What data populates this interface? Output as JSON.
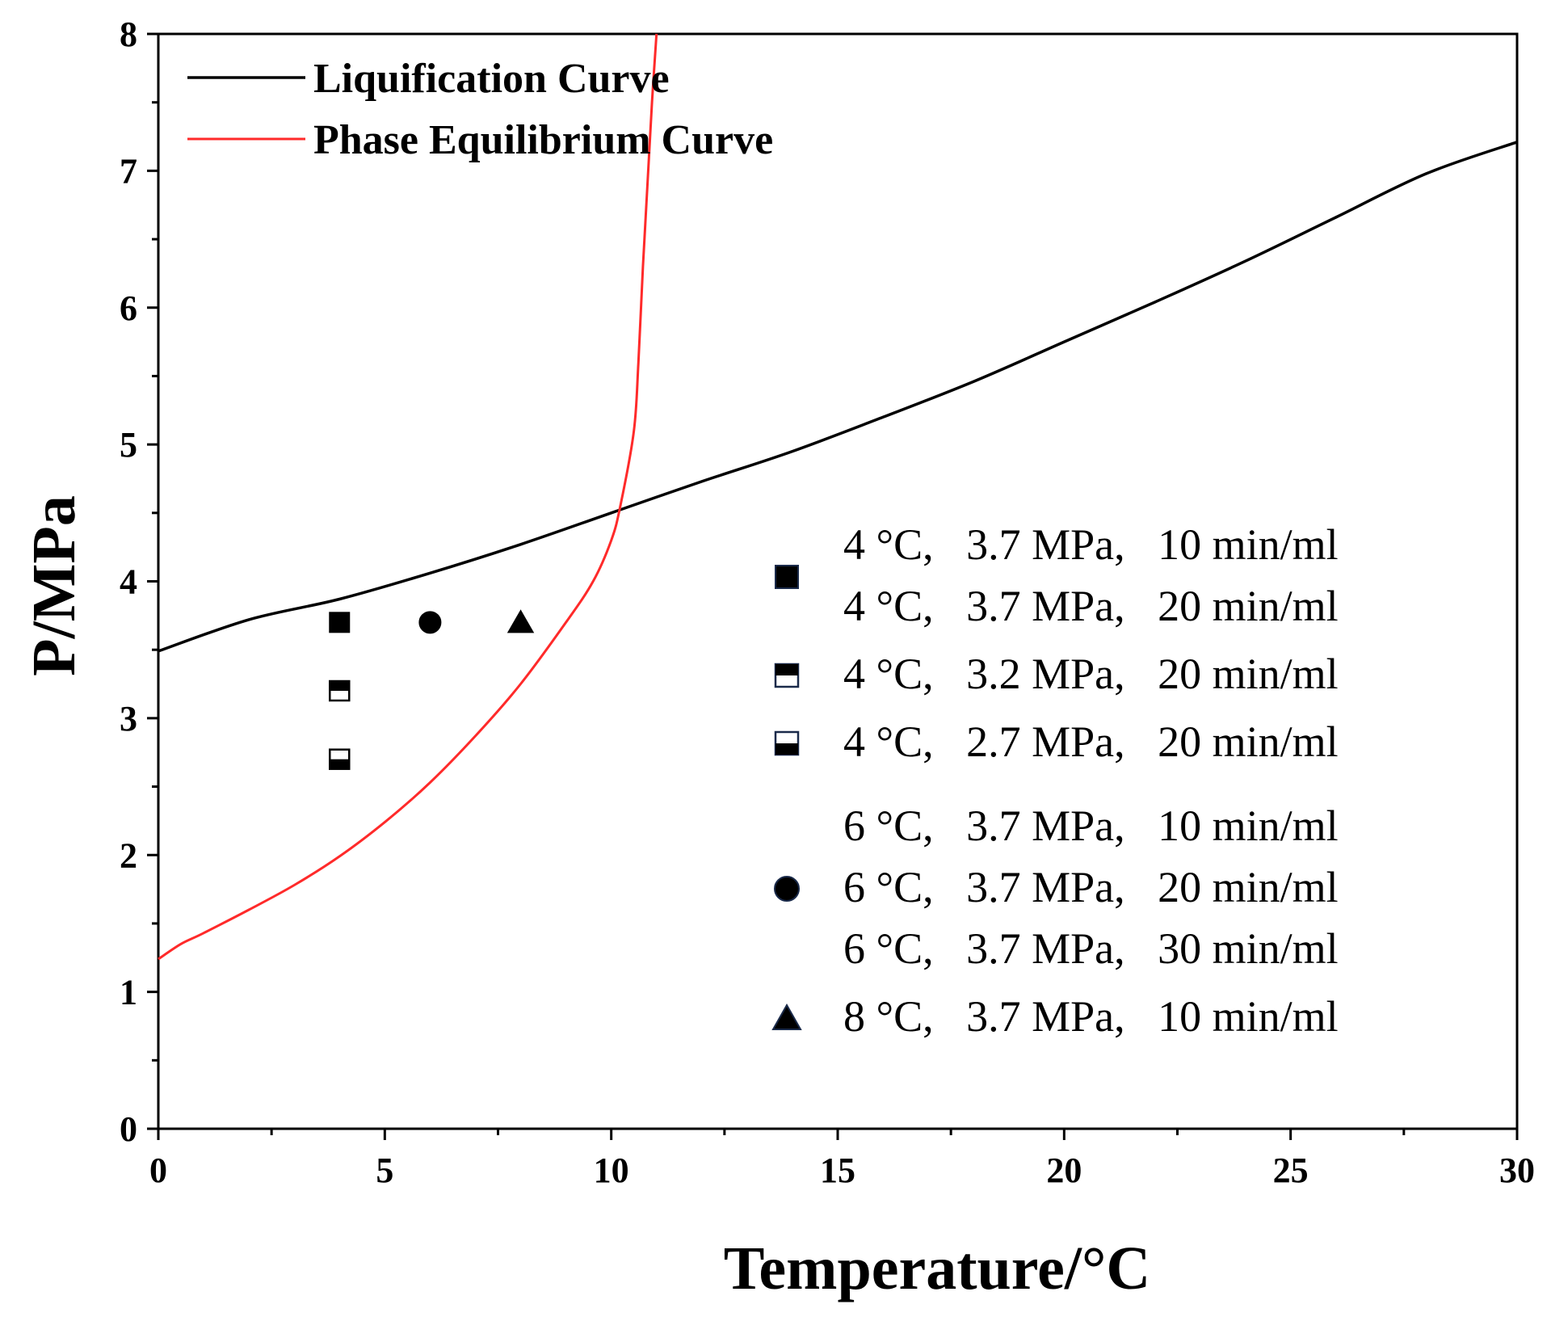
{
  "chart_data": {
    "type": "line",
    "title": "",
    "xlabel": "Temperature/°C",
    "ylabel": "P/MPa",
    "xlim": [
      0,
      30
    ],
    "ylim": [
      0,
      8
    ],
    "xticks": [
      0,
      5,
      10,
      15,
      20,
      25,
      30
    ],
    "yticks": [
      0,
      1,
      2,
      3,
      4,
      5,
      6,
      7,
      8
    ],
    "grid": false,
    "legend_placement": "top-left",
    "series": [
      {
        "name": "Liquification Curve",
        "color": "#000000",
        "x": [
          0,
          2,
          4,
          6,
          8,
          10,
          12,
          14,
          16,
          18,
          20,
          22,
          24,
          26,
          28,
          30
        ],
        "y": [
          3.49,
          3.72,
          3.87,
          4.06,
          4.27,
          4.5,
          4.73,
          4.95,
          5.2,
          5.46,
          5.75,
          6.04,
          6.34,
          6.66,
          6.98,
          7.21
        ]
      },
      {
        "name": "Phase Equilibrium Curve",
        "color": "#ff2a2a",
        "x": [
          0,
          0.5,
          1,
          2,
          3,
          4,
          5,
          6,
          7,
          8,
          9,
          9.6,
          10,
          10.2,
          10.5,
          10.6,
          10.7,
          10.8,
          10.9,
          11.0
        ],
        "y": [
          1.24,
          1.35,
          1.43,
          1.6,
          1.78,
          1.99,
          2.24,
          2.53,
          2.87,
          3.25,
          3.7,
          4.0,
          4.3,
          4.55,
          5.1,
          5.6,
          6.3,
          6.9,
          7.5,
          8.0
        ]
      }
    ],
    "points": [
      {
        "x": 4,
        "y": 3.7,
        "marker": "square-filled"
      },
      {
        "x": 6,
        "y": 3.7,
        "marker": "circle-filled"
      },
      {
        "x": 8,
        "y": 3.7,
        "marker": "triangle-filled"
      },
      {
        "x": 4,
        "y": 3.2,
        "marker": "square-top-filled"
      },
      {
        "x": 4,
        "y": 2.7,
        "marker": "square-bottom-filled"
      }
    ],
    "marker_legend": [
      {
        "marker": "square-filled",
        "lines": [
          "4 °C,   3.7 MPa,   10 min/ml",
          "4 °C,   3.7 MPa,   20 min/ml"
        ]
      },
      {
        "marker": "square-top-filled",
        "lines": [
          "4 °C,   3.2 MPa,   20 min/ml"
        ]
      },
      {
        "marker": "square-bottom-filled",
        "lines": [
          "4 °C,   2.7 MPa,   20 min/ml"
        ]
      },
      {
        "marker": "circle-filled",
        "lines": [
          "6 °C,   3.7 MPa,   10 min/ml",
          "6 °C,   3.7 MPa,   20 min/ml",
          "6 °C,   3.7 MPa,   30 min/ml"
        ]
      },
      {
        "marker": "triangle-filled",
        "lines": [
          "8 °C,   3.7 MPa,   10 min/ml"
        ]
      }
    ]
  }
}
